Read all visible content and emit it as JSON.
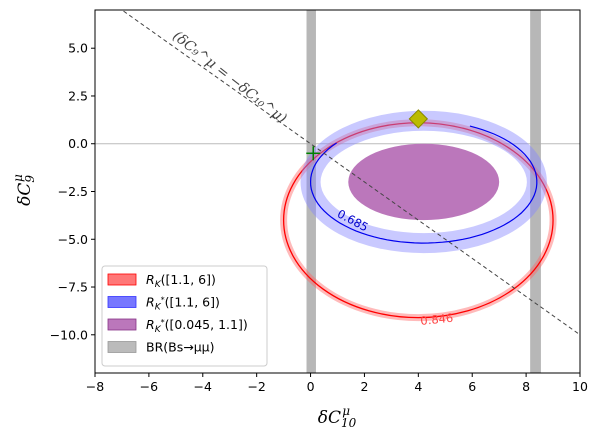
{
  "chart_data": {
    "type": "contour",
    "xlabel": "δC₁₀^μ",
    "ylabel": "δC₉^μ",
    "xlim": [
      -8,
      10
    ],
    "ylim": [
      -12,
      7
    ],
    "xticks": [
      -8,
      -6,
      -4,
      -2,
      0,
      2,
      4,
      6,
      8,
      10
    ],
    "yticks": [
      -10.0,
      -7.5,
      -5.0,
      -2.5,
      0.0,
      2.5,
      5.0
    ],
    "ytick_labels": [
      "−10.0",
      "−7.5",
      "−5.0",
      "−2.5",
      "0.0",
      "2.5",
      "5.0"
    ],
    "xtick_labels": [
      "−8",
      "−6",
      "−4",
      "−2",
      "0",
      "2",
      "4",
      "6",
      "8",
      "10"
    ],
    "grid": false,
    "legend_position": "lower-left",
    "reference_line_y": 0,
    "annotation": "(δC₉^μ = −δC₁₀^μ)",
    "diagonal_line": {
      "slope": -1,
      "style": "dashed",
      "color": "#444444"
    },
    "regions": [
      {
        "name": "R_K([1.1, 6])",
        "label": "R_K([1.1, 6])",
        "color": "#ff0000",
        "shape": "ellipse-ring",
        "center": [
          4.0,
          -4.0
        ],
        "semi_axes": [
          5.0,
          5.1
        ]
      },
      {
        "name": "R_K*([1.1, 6])",
        "label": "R_K*([1.1, 6])",
        "color": "#0000ff",
        "shape": "ellipse-ring",
        "center": [
          4.2,
          -2.0
        ],
        "semi_axes": [
          4.2,
          3.2
        ]
      },
      {
        "name": "R_K*([0.045, 1.1])",
        "label": "R_K*([0.045, 1.1])",
        "color": "#800080",
        "shape": "ellipse-filled",
        "center": [
          4.2,
          -2.0
        ],
        "semi_axes": [
          2.8,
          2.0
        ]
      },
      {
        "name": "BR(Bs→μμ)",
        "label": "BR(Bs→μμ)",
        "color": "#888888",
        "shape": "vertical-bands",
        "bands": [
          [
            -0.15,
            0.2
          ],
          [
            8.15,
            8.55
          ]
        ]
      }
    ],
    "contours": [
      {
        "level": "0.846",
        "color": "#ff4444",
        "label_at": [
          4.7,
          -9.4
        ]
      },
      {
        "level": "0.685",
        "color": "#0000cc",
        "label_at": [
          1.5,
          -4.2
        ]
      }
    ],
    "markers": [
      {
        "name": "best-fit",
        "shape": "diamond",
        "x": 4.0,
        "y": 1.3,
        "color": "#bbbb00"
      },
      {
        "name": "SM-cross",
        "shape": "plus",
        "x": 0.1,
        "y": -0.5,
        "color": "#008000"
      }
    ],
    "legend": [
      {
        "label_main": "R",
        "label_sub": "K",
        "label_sup": "",
        "label_rest": "([1.1, 6])",
        "color": "#ff0000"
      },
      {
        "label_main": "R",
        "label_sub": "K",
        "label_sup": "*",
        "label_rest": "([1.1, 6])",
        "color": "#0000ff"
      },
      {
        "label_main": "R",
        "label_sub": "K",
        "label_sup": "*",
        "label_rest": "([0.045, 1.1])",
        "color": "#800080"
      },
      {
        "label_main": "BR(",
        "label_sub": "",
        "label_sup": "",
        "label_rest": "Bs→μμ)",
        "color": "#888888"
      }
    ]
  }
}
